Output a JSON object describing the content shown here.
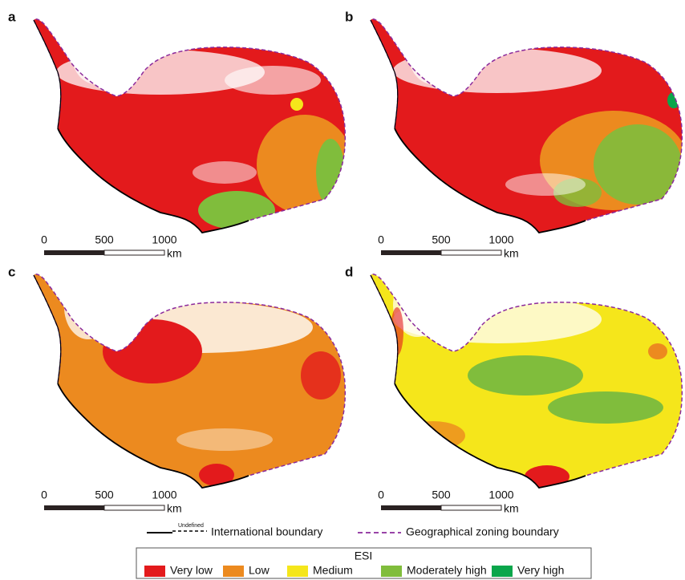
{
  "panels": [
    {
      "label": "a"
    },
    {
      "label": "b"
    },
    {
      "label": "c"
    },
    {
      "label": "d"
    }
  ],
  "scale_bar": {
    "ticks": [
      "0",
      "500",
      "1000"
    ],
    "unit": "km"
  },
  "boundary_legend": {
    "undefined": "Undefined",
    "international": "International boundary",
    "zoning": "Geographical zoning boundary"
  },
  "esi_legend": {
    "title": "ESI",
    "items": [
      {
        "name": "Very low",
        "color": "#e31a1c"
      },
      {
        "name": "Low",
        "color": "#ec8a1f"
      },
      {
        "name": "Medium",
        "color": "#f5e61b"
      },
      {
        "name": "Moderately high",
        "color": "#80bd3c"
      },
      {
        "name": "Very high",
        "color": "#0aa64b"
      }
    ]
  }
}
